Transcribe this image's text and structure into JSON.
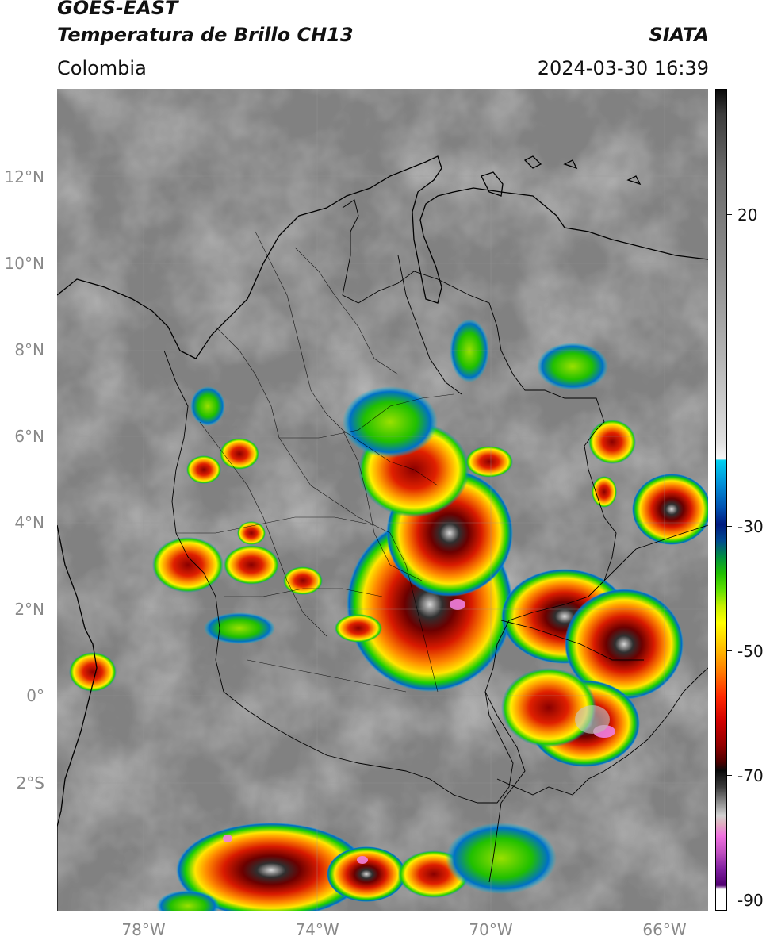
{
  "header": {
    "line1": "GOES-EAST",
    "line2": "Temperatura de Brillo CH13",
    "organization": "SIATA",
    "region": "Colombia",
    "datetime": "2024-03-30 16:39"
  },
  "map": {
    "lat_labels": [
      "12°N",
      "10°N",
      "8°N",
      "6°N",
      "4°N",
      "2°N",
      "0°",
      "2°S"
    ],
    "lon_labels": [
      "78°W",
      "74°W",
      "70°W",
      "66°W"
    ],
    "extent": {
      "lon_min": -80,
      "lon_max": -65,
      "lat_min": -5,
      "lat_max": 14
    }
  },
  "colorbar": {
    "tick_labels": [
      "20",
      "-30",
      "-50",
      "-70",
      "-90"
    ],
    "range": [
      -92,
      45
    ]
  }
}
